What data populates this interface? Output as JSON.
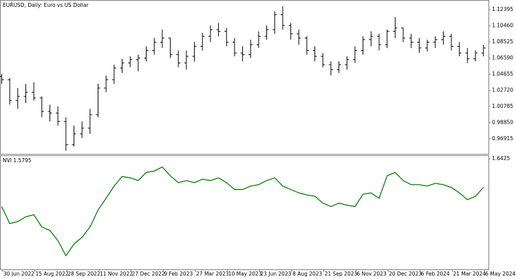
{
  "chart_data": [
    {
      "type": "ohlc",
      "title": "EURUSD, Daily:  Euro vs US Dollar",
      "color": "#000000",
      "x": [
        0,
        8,
        16,
        24,
        32,
        40,
        48,
        56,
        64,
        72,
        80,
        88,
        96,
        104,
        112,
        120,
        128,
        136,
        144,
        152,
        160,
        168,
        176,
        184,
        192,
        200,
        208,
        216,
        224,
        232,
        240,
        248,
        256,
        264,
        272,
        280,
        288,
        296,
        304,
        312,
        320,
        328,
        336,
        344,
        352,
        360,
        368,
        376,
        384,
        392,
        400,
        408,
        416,
        424,
        432,
        440,
        448,
        456,
        464,
        472,
        480
      ],
      "open": [
        1.044,
        1.04,
        1.015,
        1.02,
        1.025,
        1.018,
        1.002,
        1.0,
        0.99,
        0.962,
        0.975,
        0.982,
        0.998,
        1.03,
        1.04,
        1.054,
        1.06,
        1.064,
        1.066,
        1.075,
        1.085,
        1.09,
        1.07,
        1.06,
        1.068,
        1.08,
        1.092,
        1.1,
        1.098,
        1.085,
        1.072,
        1.07,
        1.082,
        1.092,
        1.1,
        1.118,
        1.105,
        1.095,
        1.09,
        1.075,
        1.068,
        1.058,
        1.052,
        1.058,
        1.064,
        1.075,
        1.088,
        1.092,
        1.082,
        1.098,
        1.102,
        1.09,
        1.085,
        1.078,
        1.085,
        1.088,
        1.092,
        1.08,
        1.072,
        1.065,
        1.072
      ],
      "high": [
        1.047,
        1.042,
        1.03,
        1.035,
        1.037,
        1.02,
        1.01,
        1.008,
        0.995,
        0.985,
        0.99,
        1.005,
        1.035,
        1.045,
        1.058,
        1.065,
        1.068,
        1.07,
        1.08,
        1.09,
        1.1,
        1.09,
        1.075,
        1.075,
        1.085,
        1.096,
        1.105,
        1.108,
        1.102,
        1.09,
        1.08,
        1.088,
        1.098,
        1.105,
        1.122,
        1.128,
        1.108,
        1.1,
        1.092,
        1.08,
        1.072,
        1.062,
        1.062,
        1.068,
        1.08,
        1.092,
        1.098,
        1.095,
        1.1,
        1.115,
        1.102,
        1.095,
        1.09,
        1.088,
        1.092,
        1.098,
        1.095,
        1.085,
        1.078,
        1.075,
        1.082
      ],
      "low": [
        1.035,
        1.01,
        1.005,
        1.012,
        1.015,
        0.995,
        0.99,
        0.985,
        0.955,
        0.96,
        0.97,
        0.975,
        0.995,
        1.025,
        1.035,
        1.048,
        1.055,
        1.05,
        1.062,
        1.07,
        1.078,
        1.066,
        1.055,
        1.052,
        1.062,
        1.075,
        1.085,
        1.092,
        1.08,
        1.068,
        1.062,
        1.066,
        1.078,
        1.088,
        1.095,
        1.1,
        1.088,
        1.082,
        1.07,
        1.062,
        1.055,
        1.045,
        1.048,
        1.052,
        1.06,
        1.07,
        1.08,
        1.075,
        1.078,
        1.09,
        1.085,
        1.078,
        1.072,
        1.074,
        1.078,
        1.082,
        1.075,
        1.068,
        1.06,
        1.062,
        1.068
      ],
      "close": [
        1.04,
        1.015,
        1.02,
        1.025,
        1.018,
        1.002,
        1.0,
        0.99,
        0.962,
        0.975,
        0.982,
        0.998,
        1.03,
        1.04,
        1.054,
        1.06,
        1.064,
        1.066,
        1.075,
        1.085,
        1.09,
        1.07,
        1.06,
        1.068,
        1.08,
        1.092,
        1.1,
        1.098,
        1.085,
        1.072,
        1.07,
        1.082,
        1.092,
        1.1,
        1.118,
        1.105,
        1.095,
        1.09,
        1.075,
        1.068,
        1.058,
        1.052,
        1.058,
        1.064,
        1.075,
        1.088,
        1.092,
        1.082,
        1.098,
        1.102,
        1.09,
        1.085,
        1.078,
        1.085,
        1.088,
        1.092,
        1.08,
        1.072,
        1.065,
        1.072,
        1.078
      ],
      "xlim": [
        -1,
        485
      ],
      "ylim": [
        0.951,
        1.1347
      ],
      "yticks": [
        1.12395,
        {
          "value": 1.1046,
          "label": "1.10460"
        },
        1.08525,
        {
          "value": 1.0659,
          "label": "1.06590"
        },
        1.04655,
        {
          "value": 1.0272,
          "label": "1.02720"
        },
        1.00785,
        {
          "value": 0.9885,
          "label": "0.98850"
        },
        0.96915
      ],
      "grid": false
    },
    {
      "type": "line",
      "title": "NVI 1.5795",
      "color": "#008000",
      "x": [
        0,
        8,
        16,
        24,
        32,
        40,
        48,
        56,
        64,
        72,
        80,
        88,
        96,
        104,
        112,
        120,
        128,
        136,
        144,
        152,
        160,
        168,
        176,
        184,
        192,
        200,
        208,
        216,
        224,
        232,
        240,
        248,
        256,
        264,
        272,
        280,
        288,
        296,
        304,
        312,
        320,
        328,
        336,
        344,
        352,
        360,
        368,
        376,
        384,
        392,
        400,
        408,
        416,
        424,
        432,
        440,
        448,
        456,
        464,
        472,
        480
      ],
      "values": [
        1.5375,
        1.5,
        1.5045,
        1.515,
        1.5195,
        1.4925,
        1.485,
        1.4625,
        1.4295,
        1.455,
        1.47,
        1.4925,
        1.53,
        1.5555,
        1.5825,
        1.6035,
        1.6005,
        1.5945,
        1.6125,
        1.6155,
        1.6245,
        1.605,
        1.59,
        1.5945,
        1.59,
        1.5975,
        1.5945,
        1.6005,
        1.59,
        1.575,
        1.575,
        1.5825,
        1.5855,
        1.5945,
        1.6005,
        1.5825,
        1.575,
        1.5675,
        1.563,
        1.56,
        1.545,
        1.5375,
        1.545,
        1.5405,
        1.5375,
        1.5645,
        1.5675,
        1.5555,
        1.605,
        1.6125,
        1.5945,
        1.5855,
        1.5855,
        1.5825,
        1.5885,
        1.5855,
        1.5795,
        1.5675,
        1.5525,
        1.56,
        1.5795
      ],
      "xlim": [
        -1,
        485
      ],
      "ylim": [
        1.3995,
        1.6485
      ],
      "yticks": [
        1.6425
      ],
      "xticks": [
        {
          "value": 1,
          "label": "30 Jun 2022"
        },
        {
          "value": 33,
          "label": "15 Aug 2022"
        },
        {
          "value": 65,
          "label": "28 Sep 2022"
        },
        {
          "value": 97,
          "label": "11 Nov 2022"
        },
        {
          "value": 129,
          "label": "27 Dec 2022"
        },
        {
          "value": 161,
          "label": "9 Feb 2023"
        },
        {
          "value": 193,
          "label": "27 Mar 2023"
        },
        {
          "value": 225,
          "label": "10 May 2023"
        },
        {
          "value": 257,
          "label": "23 Jun 2023"
        },
        {
          "value": 289,
          "label": "8 Aug 2023"
        },
        {
          "value": 321,
          "label": "21 Sep 2023"
        },
        {
          "value": 353,
          "label": "6 Nov 2023"
        },
        {
          "value": 385,
          "label": "20 Dec 2023"
        },
        {
          "value": 417,
          "label": "6 Feb 2024"
        },
        {
          "value": 449,
          "label": "21 Mar 2024"
        },
        {
          "value": 481,
          "label": "6 May 2024"
        }
      ],
      "grid": false
    }
  ]
}
